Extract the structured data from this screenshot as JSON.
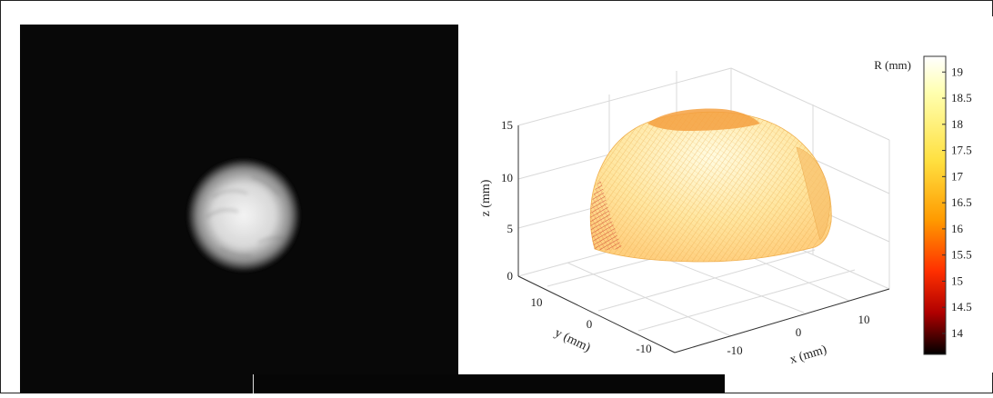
{
  "chart_data": [
    {
      "type": "image",
      "description_panel": "grayscale-photo"
    },
    {
      "type": "surface3d",
      "xlabel": "x (mm)",
      "ylabel": "y (mm)",
      "zlabel": "z (mm)",
      "x_ticks": [
        "-10",
        "0",
        "10"
      ],
      "y_ticks": [
        "10",
        "0",
        "-10"
      ],
      "z_ticks": [
        "0",
        "5",
        "10",
        "15"
      ],
      "xlim": [
        -15,
        15
      ],
      "ylim": [
        -15,
        15
      ],
      "zlim": [
        0,
        17
      ],
      "grid": true,
      "colorbar": {
        "label": "R (mm)",
        "ticks": [
          "19",
          "18.5",
          "18",
          "17.5",
          "17",
          "16.5",
          "16",
          "15.5",
          "15",
          "14.5",
          "14"
        ],
        "range": [
          13.6,
          19.3
        ],
        "colormap": "hot"
      }
    }
  ]
}
